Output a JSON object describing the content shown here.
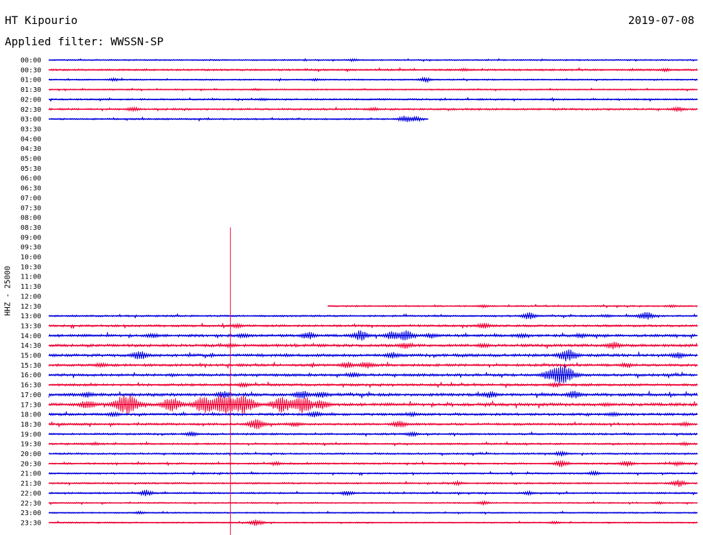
{
  "header": {
    "station": "HT Kipourio",
    "date": "2019-07-08",
    "filter": "Applied filter: WWSSN-SP"
  },
  "chart_data": {
    "type": "line",
    "title": "HT Kipourio",
    "subtitle": "Applied filter: WWSSN-SP",
    "ylabel": "HHZ - 25000",
    "xlabel": "",
    "grid": false,
    "colors": [
      "#0000dd",
      "#ee0033"
    ],
    "rows": [
      {
        "label": "00:00",
        "color": "#0000dd",
        "start": 0.0,
        "end": 1.0,
        "amp": 1.0,
        "events": [
          [
            0.47,
            1.5
          ]
        ]
      },
      {
        "label": "00:30",
        "color": "#ee0033",
        "start": 0.0,
        "end": 1.0,
        "amp": 1.3,
        "events": [
          [
            0.64,
            1.6
          ],
          [
            0.95,
            2.0
          ]
        ]
      },
      {
        "label": "01:00",
        "color": "#0000dd",
        "start": 0.0,
        "end": 1.0,
        "amp": 1.0,
        "events": [
          [
            0.1,
            2.0
          ],
          [
            0.41,
            1.5
          ],
          [
            0.58,
            3.5
          ]
        ]
      },
      {
        "label": "01:30",
        "color": "#ee0033",
        "start": 0.0,
        "end": 1.0,
        "amp": 0.9,
        "events": [
          [
            0.32,
            1.5
          ]
        ]
      },
      {
        "label": "02:00",
        "color": "#0000dd",
        "start": 0.0,
        "end": 1.0,
        "amp": 1.2,
        "events": [
          [
            0.33,
            1.5
          ]
        ]
      },
      {
        "label": "02:30",
        "color": "#ee0033",
        "start": 0.0,
        "end": 1.0,
        "amp": 1.4,
        "events": [
          [
            0.13,
            3.0
          ],
          [
            0.5,
            2.2
          ],
          [
            0.97,
            3.0
          ]
        ]
      },
      {
        "label": "03:00",
        "color": "#0000dd",
        "start": 0.0,
        "end": 0.585,
        "amp": 1.2,
        "events": [
          [
            0.55,
            5.0
          ],
          [
            0.565,
            4.0
          ]
        ]
      },
      {
        "label": "03:30",
        "color": "#ee0033",
        "start": null,
        "end": null,
        "amp": 0,
        "events": []
      },
      {
        "label": "04:00",
        "color": "#0000dd",
        "start": null,
        "end": null,
        "amp": 0,
        "events": []
      },
      {
        "label": "04:30",
        "color": "#ee0033",
        "start": null,
        "end": null,
        "amp": 0,
        "events": []
      },
      {
        "label": "05:00",
        "color": "#0000dd",
        "start": null,
        "end": null,
        "amp": 0,
        "events": []
      },
      {
        "label": "05:30",
        "color": "#ee0033",
        "start": null,
        "end": null,
        "amp": 0,
        "events": []
      },
      {
        "label": "06:00",
        "color": "#0000dd",
        "start": null,
        "end": null,
        "amp": 0,
        "events": []
      },
      {
        "label": "06:30",
        "color": "#ee0033",
        "start": null,
        "end": null,
        "amp": 0,
        "events": []
      },
      {
        "label": "07:00",
        "color": "#0000dd",
        "start": null,
        "end": null,
        "amp": 0,
        "events": []
      },
      {
        "label": "07:30",
        "color": "#ee0033",
        "start": null,
        "end": null,
        "amp": 0,
        "events": []
      },
      {
        "label": "08:00",
        "color": "#0000dd",
        "start": null,
        "end": null,
        "amp": 0,
        "events": []
      },
      {
        "label": "08:30",
        "color": "#ee0033",
        "start": null,
        "end": null,
        "amp": 0,
        "events": []
      },
      {
        "label": "09:00",
        "color": "#0000dd",
        "start": null,
        "end": null,
        "amp": 0,
        "events": []
      },
      {
        "label": "09:30",
        "color": "#ee0033",
        "start": null,
        "end": null,
        "amp": 0,
        "events": []
      },
      {
        "label": "10:00",
        "color": "#0000dd",
        "start": null,
        "end": null,
        "amp": 0,
        "events": []
      },
      {
        "label": "10:30",
        "color": "#ee0033",
        "start": null,
        "end": null,
        "amp": 0,
        "events": []
      },
      {
        "label": "11:00",
        "color": "#0000dd",
        "start": null,
        "end": null,
        "amp": 0,
        "events": []
      },
      {
        "label": "11:30",
        "color": "#ee0033",
        "start": null,
        "end": null,
        "amp": 0,
        "events": []
      },
      {
        "label": "12:00",
        "color": "#0000dd",
        "start": null,
        "end": null,
        "amp": 0,
        "events": []
      },
      {
        "label": "12:30",
        "color": "#ee0033",
        "start": 0.43,
        "end": 1.0,
        "amp": 1.1,
        "events": [
          [
            0.67,
            2.0
          ],
          [
            0.96,
            1.6
          ]
        ]
      },
      {
        "label": "13:00",
        "color": "#0000dd",
        "start": 0.0,
        "end": 1.0,
        "amp": 1.3,
        "events": [
          [
            0.74,
            5.0
          ],
          [
            0.86,
            2.0
          ],
          [
            0.92,
            6.0
          ]
        ]
      },
      {
        "label": "13:30",
        "color": "#ee0033",
        "start": 0.0,
        "end": 1.0,
        "amp": 1.6,
        "events": [
          [
            0.29,
            2.5
          ],
          [
            0.67,
            4.0
          ]
        ]
      },
      {
        "label": "14:00",
        "color": "#0000dd",
        "start": 0.0,
        "end": 1.0,
        "amp": 1.9,
        "events": [
          [
            0.16,
            3.0
          ],
          [
            0.3,
            3.0
          ],
          [
            0.4,
            5.0
          ],
          [
            0.48,
            7.0
          ],
          [
            0.53,
            6.0
          ],
          [
            0.55,
            7.0
          ],
          [
            0.59,
            3.5
          ],
          [
            0.73,
            3.0
          ],
          [
            0.82,
            3.0
          ]
        ]
      },
      {
        "label": "14:30",
        "color": "#ee0033",
        "start": 0.0,
        "end": 1.0,
        "amp": 2.0,
        "events": [
          [
            0.28,
            2.5
          ],
          [
            0.55,
            4.0
          ],
          [
            0.67,
            3.0
          ],
          [
            0.87,
            5.0
          ]
        ]
      },
      {
        "label": "15:00",
        "color": "#0000dd",
        "start": 0.0,
        "end": 1.0,
        "amp": 2.1,
        "events": [
          [
            0.14,
            6.0
          ],
          [
            0.53,
            4.0
          ],
          [
            0.8,
            9.0
          ],
          [
            0.97,
            4.0
          ]
        ]
      },
      {
        "label": "15:30",
        "color": "#ee0033",
        "start": 0.0,
        "end": 1.0,
        "amp": 1.9,
        "events": [
          [
            0.08,
            3.0
          ],
          [
            0.46,
            4.0
          ],
          [
            0.49,
            5.0
          ],
          [
            0.89,
            3.0
          ]
        ]
      },
      {
        "label": "16:00",
        "color": "#0000dd",
        "start": 0.0,
        "end": 1.0,
        "amp": 1.9,
        "events": [
          [
            0.47,
            3.0
          ],
          [
            0.77,
            6.0
          ],
          [
            0.79,
            15.0
          ]
        ]
      },
      {
        "label": "16:30",
        "color": "#ee0033",
        "start": 0.0,
        "end": 1.0,
        "amp": 1.7,
        "events": [
          [
            0.3,
            3.0
          ],
          [
            0.78,
            3.0
          ]
        ]
      },
      {
        "label": "17:00",
        "color": "#0000dd",
        "start": 0.0,
        "end": 1.0,
        "amp": 2.1,
        "events": [
          [
            0.06,
            3.5
          ],
          [
            0.27,
            5.0
          ],
          [
            0.39,
            6.0
          ],
          [
            0.42,
            4.0
          ],
          [
            0.68,
            4.5
          ],
          [
            0.81,
            5.0
          ]
        ]
      },
      {
        "label": "17:30",
        "color": "#ee0033",
        "start": 0.0,
        "end": 1.0,
        "amp": 2.2,
        "events": [
          [
            0.06,
            6.0
          ],
          [
            0.12,
            14.0
          ],
          [
            0.19,
            10.0
          ],
          [
            0.24,
            12.0
          ],
          [
            0.27,
            15.0
          ],
          [
            0.3,
            13.0
          ],
          [
            0.36,
            11.0
          ],
          [
            0.39,
            12.0
          ],
          [
            0.42,
            7.0
          ],
          [
            0.86,
            2.0
          ]
        ]
      },
      {
        "label": "18:00",
        "color": "#0000dd",
        "start": 0.0,
        "end": 1.0,
        "amp": 1.8,
        "events": [
          [
            0.1,
            3.0
          ],
          [
            0.41,
            4.0
          ],
          [
            0.56,
            2.5
          ],
          [
            0.87,
            3.0
          ]
        ]
      },
      {
        "label": "18:30",
        "color": "#ee0033",
        "start": 0.0,
        "end": 1.0,
        "amp": 1.6,
        "events": [
          [
            0.32,
            7.0
          ],
          [
            0.38,
            3.0
          ],
          [
            0.54,
            5.0
          ],
          [
            0.98,
            2.5
          ]
        ]
      },
      {
        "label": "19:00",
        "color": "#0000dd",
        "start": 0.0,
        "end": 1.0,
        "amp": 1.4,
        "events": [
          [
            0.22,
            3.0
          ],
          [
            0.56,
            3.0
          ]
        ]
      },
      {
        "label": "19:30",
        "color": "#ee0033",
        "start": 0.0,
        "end": 1.0,
        "amp": 1.3,
        "events": [
          [
            0.07,
            2.0
          ],
          [
            0.98,
            2.0
          ]
        ]
      },
      {
        "label": "20:00",
        "color": "#0000dd",
        "start": 0.0,
        "end": 1.0,
        "amp": 1.3,
        "events": [
          [
            0.79,
            3.5
          ]
        ]
      },
      {
        "label": "20:30",
        "color": "#ee0033",
        "start": 0.0,
        "end": 1.0,
        "amp": 1.3,
        "events": [
          [
            0.35,
            2.5
          ],
          [
            0.79,
            5.0
          ],
          [
            0.89,
            4.5
          ],
          [
            0.97,
            3.0
          ]
        ]
      },
      {
        "label": "21:00",
        "color": "#0000dd",
        "start": 0.0,
        "end": 1.0,
        "amp": 1.2,
        "events": [
          [
            0.84,
            3.0
          ]
        ]
      },
      {
        "label": "21:30",
        "color": "#ee0033",
        "start": 0.0,
        "end": 1.0,
        "amp": 1.2,
        "events": [
          [
            0.63,
            2.5
          ],
          [
            0.97,
            5.0
          ]
        ]
      },
      {
        "label": "22:00",
        "color": "#0000dd",
        "start": 0.0,
        "end": 1.0,
        "amp": 1.2,
        "events": [
          [
            0.15,
            4.5
          ],
          [
            0.46,
            3.5
          ],
          [
            0.74,
            2.5
          ]
        ]
      },
      {
        "label": "22:30",
        "color": "#ee0033",
        "start": 0.0,
        "end": 1.0,
        "amp": 1.0,
        "events": [
          [
            0.67,
            3.0
          ],
          [
            0.94,
            1.5
          ]
        ]
      },
      {
        "label": "23:00",
        "color": "#0000dd",
        "start": 0.0,
        "end": 1.0,
        "amp": 1.0,
        "events": [
          [
            0.14,
            2.0
          ]
        ]
      },
      {
        "label": "23:30",
        "color": "#ee0033",
        "start": 0.0,
        "end": 1.0,
        "amp": 1.0,
        "events": [
          [
            0.32,
            5.0
          ],
          [
            0.78,
            2.0
          ]
        ]
      }
    ],
    "marker_x": 0.28
  }
}
